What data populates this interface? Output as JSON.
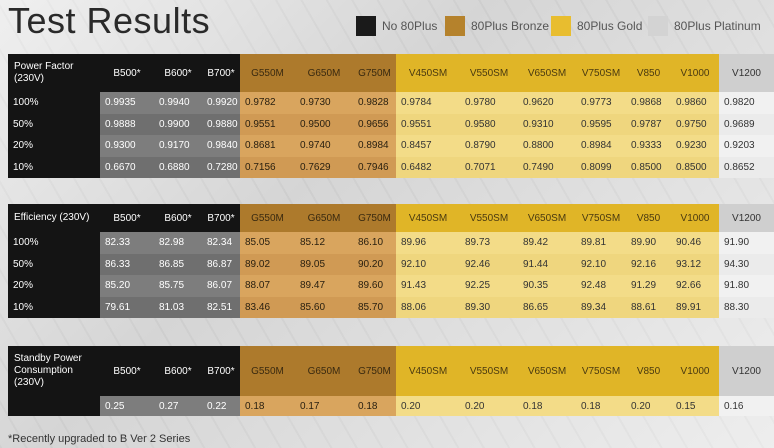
{
  "title": "Test Results",
  "legend": [
    {
      "label": "No 80Plus",
      "color": "#1a1a1a"
    },
    {
      "label": "80Plus Bronze",
      "color": "#b5822c"
    },
    {
      "label": "80Plus Gold",
      "color": "#e8bd2f"
    },
    {
      "label": "80Plus Platinum",
      "color": "#d3d3d3"
    }
  ],
  "columns": [
    "B500*",
    "B600*",
    "B700*",
    "G550M",
    "G650M",
    "G750M",
    "V450SM",
    "V550SM",
    "V650SM",
    "V750SM",
    "V850",
    "V1000",
    "V1200"
  ],
  "sections": [
    {
      "header": "Power Factor (230V)",
      "rows": [
        {
          "label": "100%",
          "values": [
            "0.9935",
            "0.9940",
            "0.9920",
            "0.9782",
            "0.9730",
            "0.9828",
            "0.9784",
            "0.9780",
            "0.9620",
            "0.9773",
            "0.9868",
            "0.9860",
            "0.9820"
          ]
        },
        {
          "label": "50%",
          "values": [
            "0.9888",
            "0.9900",
            "0.9880",
            "0.9551",
            "0.9500",
            "0.9656",
            "0.9551",
            "0.9580",
            "0.9310",
            "0.9595",
            "0.9787",
            "0.9750",
            "0.9689"
          ]
        },
        {
          "label": "20%",
          "values": [
            "0.9300",
            "0.9170",
            "0.9840",
            "0.8681",
            "0.9740",
            "0.8984",
            "0.8457",
            "0.8790",
            "0.8800",
            "0.8984",
            "0.9333",
            "0.9230",
            "0.9203"
          ]
        },
        {
          "label": "10%",
          "values": [
            "0.6670",
            "0.6880",
            "0.7280",
            "0.7156",
            "0.7629",
            "0.7946",
            "0.6482",
            "0.7071",
            "0.7490",
            "0.8099",
            "0.8500",
            "0.8500",
            "0.8652"
          ]
        }
      ]
    },
    {
      "header": "Efficiency (230V)",
      "rows": [
        {
          "label": "100%",
          "values": [
            "82.33",
            "82.98",
            "82.34",
            "85.05",
            "85.12",
            "86.10",
            "89.96",
            "89.73",
            "89.42",
            "89.81",
            "89.90",
            "90.46",
            "91.90"
          ]
        },
        {
          "label": "50%",
          "values": [
            "86.33",
            "86.85",
            "86.87",
            "89.02",
            "89.05",
            "90.20",
            "92.10",
            "92.46",
            "91.44",
            "92.10",
            "92.16",
            "93.12",
            "94.30"
          ]
        },
        {
          "label": "20%",
          "values": [
            "85.20",
            "85.75",
            "86.07",
            "88.07",
            "89.47",
            "89.60",
            "91.43",
            "92.25",
            "90.35",
            "92.48",
            "91.29",
            "92.66",
            "91.80"
          ]
        },
        {
          "label": "10%",
          "values": [
            "79.61",
            "81.03",
            "82.51",
            "83.46",
            "85.60",
            "85.70",
            "88.06",
            "89.30",
            "86.65",
            "89.34",
            "88.61",
            "89.91",
            "88.30"
          ]
        }
      ]
    },
    {
      "header": "Standby Power Consumption (230V)",
      "rows": [
        {
          "label": "",
          "values": [
            "0.25",
            "0.27",
            "0.22",
            "0.18",
            "0.17",
            "0.18",
            "0.20",
            "0.20",
            "0.18",
            "0.18",
            "0.20",
            "0.15",
            "0.16"
          ]
        }
      ]
    }
  ],
  "footnote": "*Recently upgraded to B Ver 2 Series"
}
